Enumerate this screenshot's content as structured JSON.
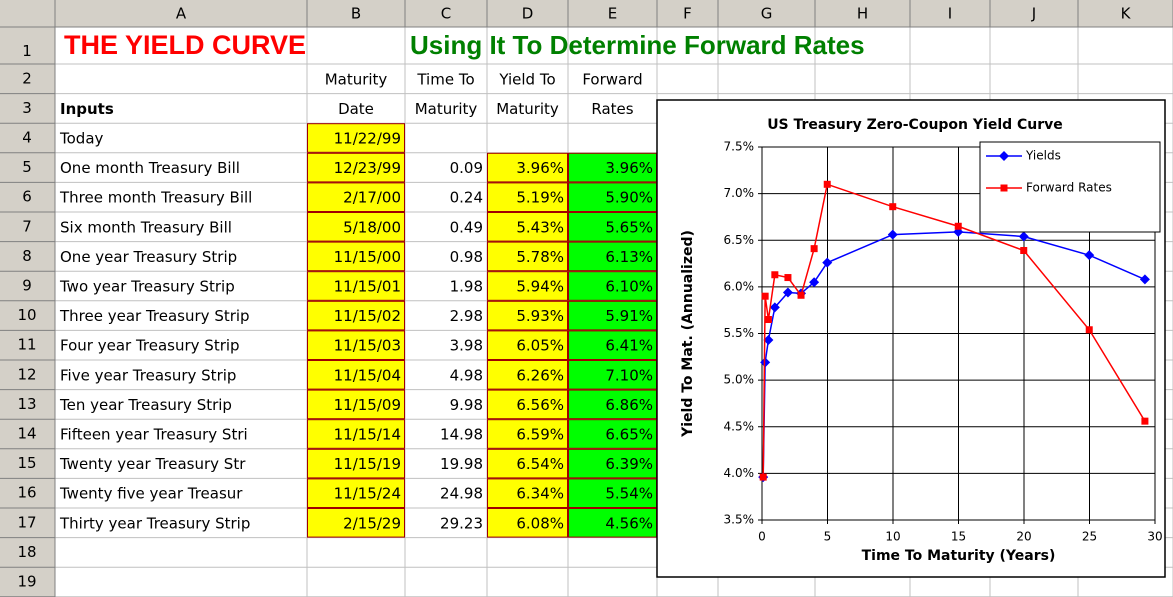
{
  "sheet": {
    "columns": [
      "A",
      "B",
      "C",
      "D",
      "E",
      "F",
      "G",
      "H",
      "I",
      "J",
      "K"
    ],
    "row_numbers": [
      "1",
      "2",
      "3",
      "4",
      "5",
      "6",
      "7",
      "8",
      "9",
      "10",
      "11",
      "12",
      "13",
      "14",
      "15",
      "16",
      "17",
      "18",
      "19"
    ],
    "title": "THE YIELD CURVE",
    "subtitle": "Using It To Determine Forward Rates",
    "header_row2": [
      "Maturity",
      "Time To",
      "Yield To",
      "Forward"
    ],
    "header_row3": [
      "Inputs",
      "Date",
      "Maturity",
      "Maturity",
      "Rates"
    ],
    "rows": [
      [
        "Today",
        "11/22/99"
      ],
      [
        "One month Treasury Bill",
        "12/23/99",
        "0.09",
        "3.96%",
        "3.96%"
      ],
      [
        "Three month Treasury Bill",
        "2/17/00",
        "0.24",
        "5.19%",
        "5.90%"
      ],
      [
        "Six month Treasury Bill",
        "5/18/00",
        "0.49",
        "5.43%",
        "5.65%"
      ],
      [
        "One year Treasury Strip",
        "11/15/00",
        "0.98",
        "5.78%",
        "6.13%"
      ],
      [
        "Two year Treasury Strip",
        "11/15/01",
        "1.98",
        "5.94%",
        "6.10%"
      ],
      [
        "Three year Treasury Strip",
        "11/15/02",
        "2.98",
        "5.93%",
        "5.91%"
      ],
      [
        "Four year Treasury Strip",
        "11/15/03",
        "3.98",
        "6.05%",
        "6.41%"
      ],
      [
        "Five year Treasury Strip",
        "11/15/04",
        "4.98",
        "6.26%",
        "7.10%"
      ],
      [
        "Ten year Treasury Strip",
        "11/15/09",
        "9.98",
        "6.56%",
        "6.86%"
      ],
      [
        "Fifteen year Treasury Stri",
        "11/15/14",
        "14.98",
        "6.59%",
        "6.65%"
      ],
      [
        "Twenty year Treasury Str",
        "11/15/19",
        "19.98",
        "6.54%",
        "6.39%"
      ],
      [
        "Twenty five year Treasur",
        "11/15/24",
        "24.98",
        "6.34%",
        "5.54%"
      ],
      [
        "Thirty year Treasury Strip",
        "2/15/29",
        "29.23",
        "6.08%",
        "4.56%"
      ]
    ]
  },
  "chart_data": {
    "type": "line",
    "title": "US Treasury Zero-Coupon Yield Curve",
    "x_label": "Time To Maturity (Years)",
    "y_label": "Yield To Mat. (Annualized)",
    "x": [
      0.09,
      0.24,
      0.49,
      0.98,
      1.98,
      2.98,
      3.98,
      4.98,
      9.98,
      14.98,
      19.98,
      24.98,
      29.23
    ],
    "series": [
      {
        "name": "Yields",
        "color": "#0000ff",
        "marker": "diamond",
        "values": [
          3.96,
          5.19,
          5.43,
          5.78,
          5.94,
          5.93,
          6.05,
          6.26,
          6.56,
          6.59,
          6.54,
          6.34,
          6.08
        ]
      },
      {
        "name": "Forward Rates",
        "color": "#ff0000",
        "marker": "square",
        "values": [
          3.96,
          5.9,
          5.65,
          6.13,
          6.1,
          5.91,
          6.41,
          7.1,
          6.86,
          6.65,
          6.39,
          5.54,
          4.56
        ]
      }
    ],
    "xlim": [
      0,
      30
    ],
    "xticks": [
      0,
      5,
      10,
      15,
      20,
      25,
      30
    ],
    "ylim": [
      3.5,
      7.5
    ],
    "yticks": [
      {
        "value": 3.5,
        "label": "3.5%"
      },
      {
        "value": 4.0,
        "label": "4.0%"
      },
      {
        "value": 4.5,
        "label": "4.5%"
      },
      {
        "value": 5.0,
        "label": "5.0%"
      },
      {
        "value": 5.5,
        "label": "5.5%"
      },
      {
        "value": 6.0,
        "label": "6.0%"
      },
      {
        "value": 6.5,
        "label": "6.5%"
      },
      {
        "value": 7.0,
        "label": "7.0%"
      },
      {
        "value": 7.5,
        "label": "7.5%"
      }
    ],
    "grid": true,
    "legend": "upper right"
  }
}
